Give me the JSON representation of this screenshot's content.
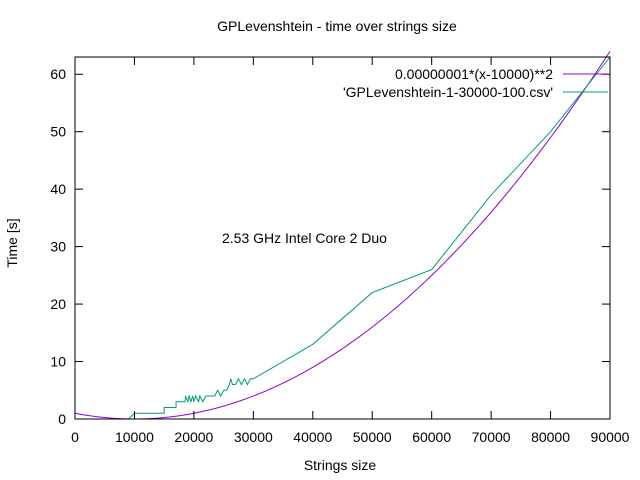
{
  "chart_data": {
    "type": "line",
    "title": "GPLevenshtein - time over strings size",
    "xlabel": "Strings size",
    "ylabel": "Time [s]",
    "xlim": [
      0,
      90000
    ],
    "ylim": [
      0,
      63
    ],
    "xticks": [
      0,
      10000,
      20000,
      30000,
      40000,
      50000,
      60000,
      70000,
      80000,
      90000
    ],
    "yticks": [
      0,
      10,
      20,
      30,
      40,
      50,
      60
    ],
    "grid": false,
    "legend_position": "top-right",
    "annotation": "2.53 GHz Intel Core 2 Duo",
    "series": [
      {
        "name": "0.00000001*(x-10000)**2",
        "kind": "function",
        "color": "#9400d3",
        "function": {
          "coef": 1e-08,
          "shift": 10000,
          "power": 2
        }
      },
      {
        "name": "'GPLevenshtein-1-30000-100.csv'",
        "kind": "data",
        "color": "#009e73",
        "x": [
          1000,
          5000,
          9000,
          10000,
          15000,
          15000,
          17000,
          17000,
          18500,
          18600,
          19000,
          19200,
          19500,
          19800,
          20000,
          20300,
          20800,
          21000,
          21500,
          22000,
          22400,
          23000,
          23500,
          24000,
          24500,
          25000,
          25500,
          26000,
          26200,
          26500,
          26800,
          27000,
          27500,
          28000,
          28500,
          29000,
          29500,
          30000,
          40000,
          50000,
          60000,
          70000,
          80000,
          90000
        ],
        "y": [
          0.0,
          0.0,
          0.0,
          1.0,
          1.0,
          2.0,
          2.0,
          3.0,
          3.0,
          4.0,
          3.0,
          4.0,
          3.0,
          4.0,
          3.0,
          4.0,
          3.0,
          4.0,
          3.0,
          4.0,
          4.0,
          4.0,
          4.0,
          5.0,
          4.0,
          5.0,
          5.0,
          6.0,
          7.0,
          6.0,
          6.0,
          6.0,
          7.0,
          6.0,
          7.0,
          6.0,
          7.0,
          7.0,
          13.0,
          22.0,
          26.0,
          39.0,
          50.0,
          63.0
        ]
      }
    ]
  }
}
